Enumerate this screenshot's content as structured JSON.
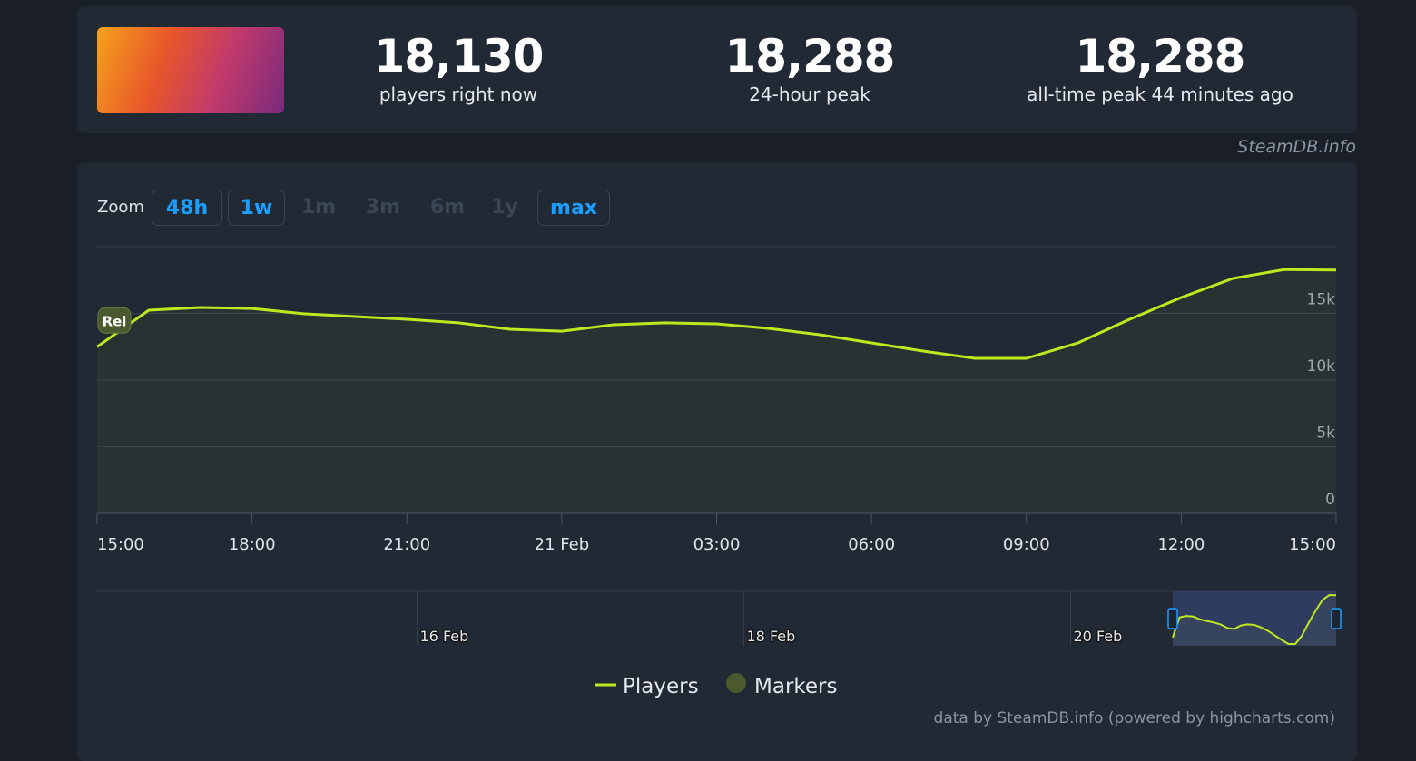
{
  "header": {
    "stats": [
      {
        "value": "18,130",
        "label": "players right now"
      },
      {
        "value": "18,288",
        "label": "24-hour peak"
      },
      {
        "value": "18,288",
        "label": "all-time peak 44 minutes ago"
      }
    ],
    "credit": "SteamDB.info"
  },
  "zoom": {
    "label": "Zoom",
    "buttons": [
      "48h",
      "1w",
      "1m",
      "3m",
      "6m",
      "1y",
      "max"
    ]
  },
  "chart_data": {
    "type": "line",
    "x": [
      "20 Feb 15:00",
      "20 Feb 16:00",
      "20 Feb 17:00",
      "20 Feb 18:00",
      "20 Feb 19:00",
      "20 Feb 20:00",
      "20 Feb 21:00",
      "20 Feb 22:00",
      "20 Feb 23:00",
      "21 Feb 00:00",
      "21 Feb 01:00",
      "21 Feb 02:00",
      "21 Feb 03:00",
      "21 Feb 04:00",
      "21 Feb 05:00",
      "21 Feb 06:00",
      "21 Feb 07:00",
      "21 Feb 08:00",
      "21 Feb 09:00",
      "21 Feb 10:00",
      "21 Feb 11:00",
      "21 Feb 12:00",
      "21 Feb 13:00",
      "21 Feb 14:00",
      "21 Feb 15:00"
    ],
    "series": [
      {
        "name": "Players",
        "color": "#bfe81f",
        "values": [
          12500,
          15240,
          15440,
          15370,
          14970,
          14760,
          14560,
          14290,
          13810,
          13670,
          14150,
          14290,
          14220,
          13880,
          13400,
          12790,
          12180,
          11630,
          11630,
          12790,
          14560,
          16190,
          17620,
          18288,
          18250
        ]
      }
    ],
    "markers": {
      "name": "Markers",
      "color": "#4a5a2e",
      "label": "Rel"
    },
    "xlim": [
      "20 Feb 15:00",
      "21 Feb 15:00"
    ],
    "xticks": [
      {
        "value": "20 Feb 15:00",
        "label": "15:00"
      },
      {
        "value": "20 Feb 18:00",
        "label": "18:00"
      },
      {
        "value": "20 Feb 21:00",
        "label": "21:00"
      },
      {
        "value": "21 Feb 00:00",
        "label": "21 Feb"
      },
      {
        "value": "21 Feb 03:00",
        "label": "03:00"
      },
      {
        "value": "21 Feb 06:00",
        "label": "06:00"
      },
      {
        "value": "21 Feb 09:00",
        "label": "09:00"
      },
      {
        "value": "21 Feb 12:00",
        "label": "12:00"
      },
      {
        "value": "21 Feb 15:00",
        "label": "15:00"
      }
    ],
    "ylim": [
      0,
      20000
    ],
    "yticks": [
      0,
      {
        "value": 5000,
        "label": "5k"
      },
      {
        "value": 10000,
        "label": "10k"
      },
      {
        "value": 15000,
        "label": "15k"
      }
    ],
    "grid": true,
    "navigator": {
      "xlim": [
        "14 Feb 01:00",
        "21 Feb 15:00"
      ],
      "xticks": [
        {
          "value": "16 Feb 00:00",
          "label": "16 Feb"
        },
        {
          "value": "18 Feb 00:00",
          "label": "18 Feb"
        },
        {
          "value": "20 Feb 00:00",
          "label": "20 Feb"
        }
      ]
    },
    "footer": "data by SteamDB.info (powered by highcharts.com)"
  }
}
